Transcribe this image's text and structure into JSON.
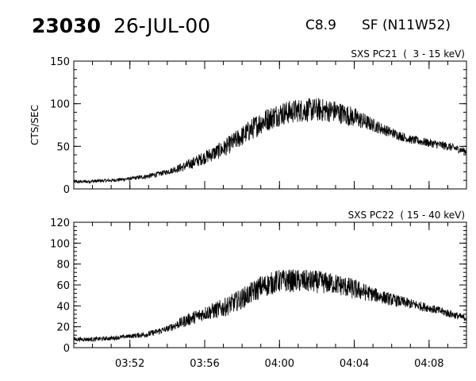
{
  "header": {
    "event_id": "23030",
    "date": "26-JUL-00",
    "goes_class": "C8.9",
    "flare_location": "SF (N11W52)"
  },
  "chart_data": [
    {
      "type": "line",
      "title": "SXS PC21  (  3 - 15 keV)",
      "xlabel": "",
      "ylabel": "CTS/SEC",
      "xlim": [
        "03:49",
        "04:10"
      ],
      "ylim": [
        0,
        150
      ],
      "yticks": [
        0,
        50,
        100,
        150
      ],
      "xticks": [
        "03:52",
        "03:56",
        "04:00",
        "04:04",
        "04:08"
      ],
      "series": [
        {
          "x": [
            "03:49",
            "03:50",
            "03:51",
            "03:52",
            "03:53",
            "03:54",
            "03:55",
            "03:56",
            "03:57",
            "03:58",
            "03:59",
            "04:00",
            "04:01",
            "04:02",
            "04:03",
            "04:04",
            "04:05",
            "04:06",
            "04:07",
            "04:08",
            "04:09",
            "04:10"
          ],
          "values": [
            8,
            9,
            10,
            12,
            15,
            20,
            27,
            37,
            47,
            62,
            78,
            88,
            92,
            93,
            91,
            84,
            75,
            66,
            58,
            54,
            50,
            44
          ],
          "noise": [
            2,
            2,
            2,
            2,
            3,
            3,
            6,
            8,
            10,
            12,
            14,
            14,
            14,
            14,
            13,
            12,
            8,
            6,
            5,
            5,
            5,
            4
          ]
        }
      ]
    },
    {
      "type": "line",
      "title": "SXS PC22  ( 15 - 40 keV)",
      "xlabel": "",
      "ylabel": "",
      "xlim": [
        "03:49",
        "04:10"
      ],
      "ylim": [
        0,
        120
      ],
      "yticks": [
        0,
        20,
        40,
        60,
        80,
        100,
        120
      ],
      "xticks": [
        "03:52",
        "03:56",
        "04:00",
        "04:04",
        "04:08"
      ],
      "series": [
        {
          "x": [
            "03:49",
            "03:50",
            "03:51",
            "03:52",
            "03:53",
            "03:54",
            "03:55",
            "03:56",
            "03:57",
            "03:58",
            "03:59",
            "04:00",
            "04:01",
            "04:02",
            "04:03",
            "04:04",
            "04:05",
            "04:06",
            "04:07",
            "04:08",
            "04:09",
            "04:10"
          ],
          "values": [
            8,
            8,
            9,
            11,
            13,
            18,
            26,
            33,
            38,
            47,
            58,
            64,
            64,
            63,
            61,
            56,
            51,
            46,
            42,
            38,
            33,
            28
          ],
          "noise": [
            2,
            2,
            2,
            2,
            3,
            3,
            6,
            7,
            9,
            10,
            11,
            11,
            11,
            11,
            10,
            10,
            7,
            6,
            5,
            4,
            4,
            3
          ]
        }
      ]
    }
  ]
}
